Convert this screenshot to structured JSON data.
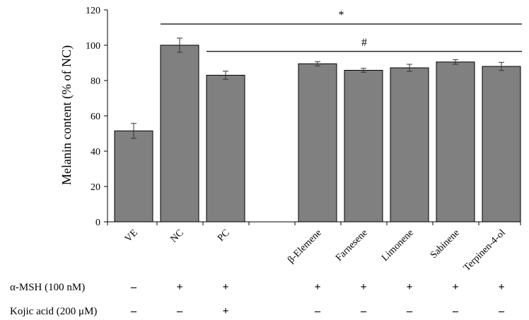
{
  "chart_data": {
    "type": "bar",
    "title": "",
    "xlabel": "",
    "ylabel": "Melanin content (% of NC)",
    "ylim": [
      0,
      120
    ],
    "yticks": [
      0,
      20,
      40,
      60,
      80,
      100,
      120
    ],
    "grid": false,
    "bar_color": "#808080",
    "categories": [
      "VE",
      "NC",
      "PC",
      "β-Elemene",
      "Farnesene",
      "Limonene",
      "Sabinene",
      "Terpinen-4-ol"
    ],
    "values": [
      51.5,
      100,
      83,
      89.5,
      85.8,
      87.2,
      90.5,
      88
    ],
    "errors": [
      4.2,
      4.0,
      2.3,
      1.2,
      1.1,
      2.0,
      1.3,
      2.3
    ],
    "annotations": [
      {
        "symbol": "*",
        "from": "NC",
        "to": "Terpinen-4-ol",
        "y": 112
      },
      {
        "symbol": "#",
        "from": "PC",
        "to": "Terpinen-4-ol",
        "y": 96.5
      }
    ],
    "treatment_rows": [
      {
        "label": "α-MSH (100 nM)",
        "signs": [
          "–",
          "+",
          "+",
          "+",
          "+",
          "+",
          "+",
          "+"
        ]
      },
      {
        "label": "Kojic acid (200 μM)",
        "signs": [
          "–",
          "–",
          "+",
          "–",
          "–",
          "–",
          "–",
          "–"
        ]
      }
    ]
  }
}
